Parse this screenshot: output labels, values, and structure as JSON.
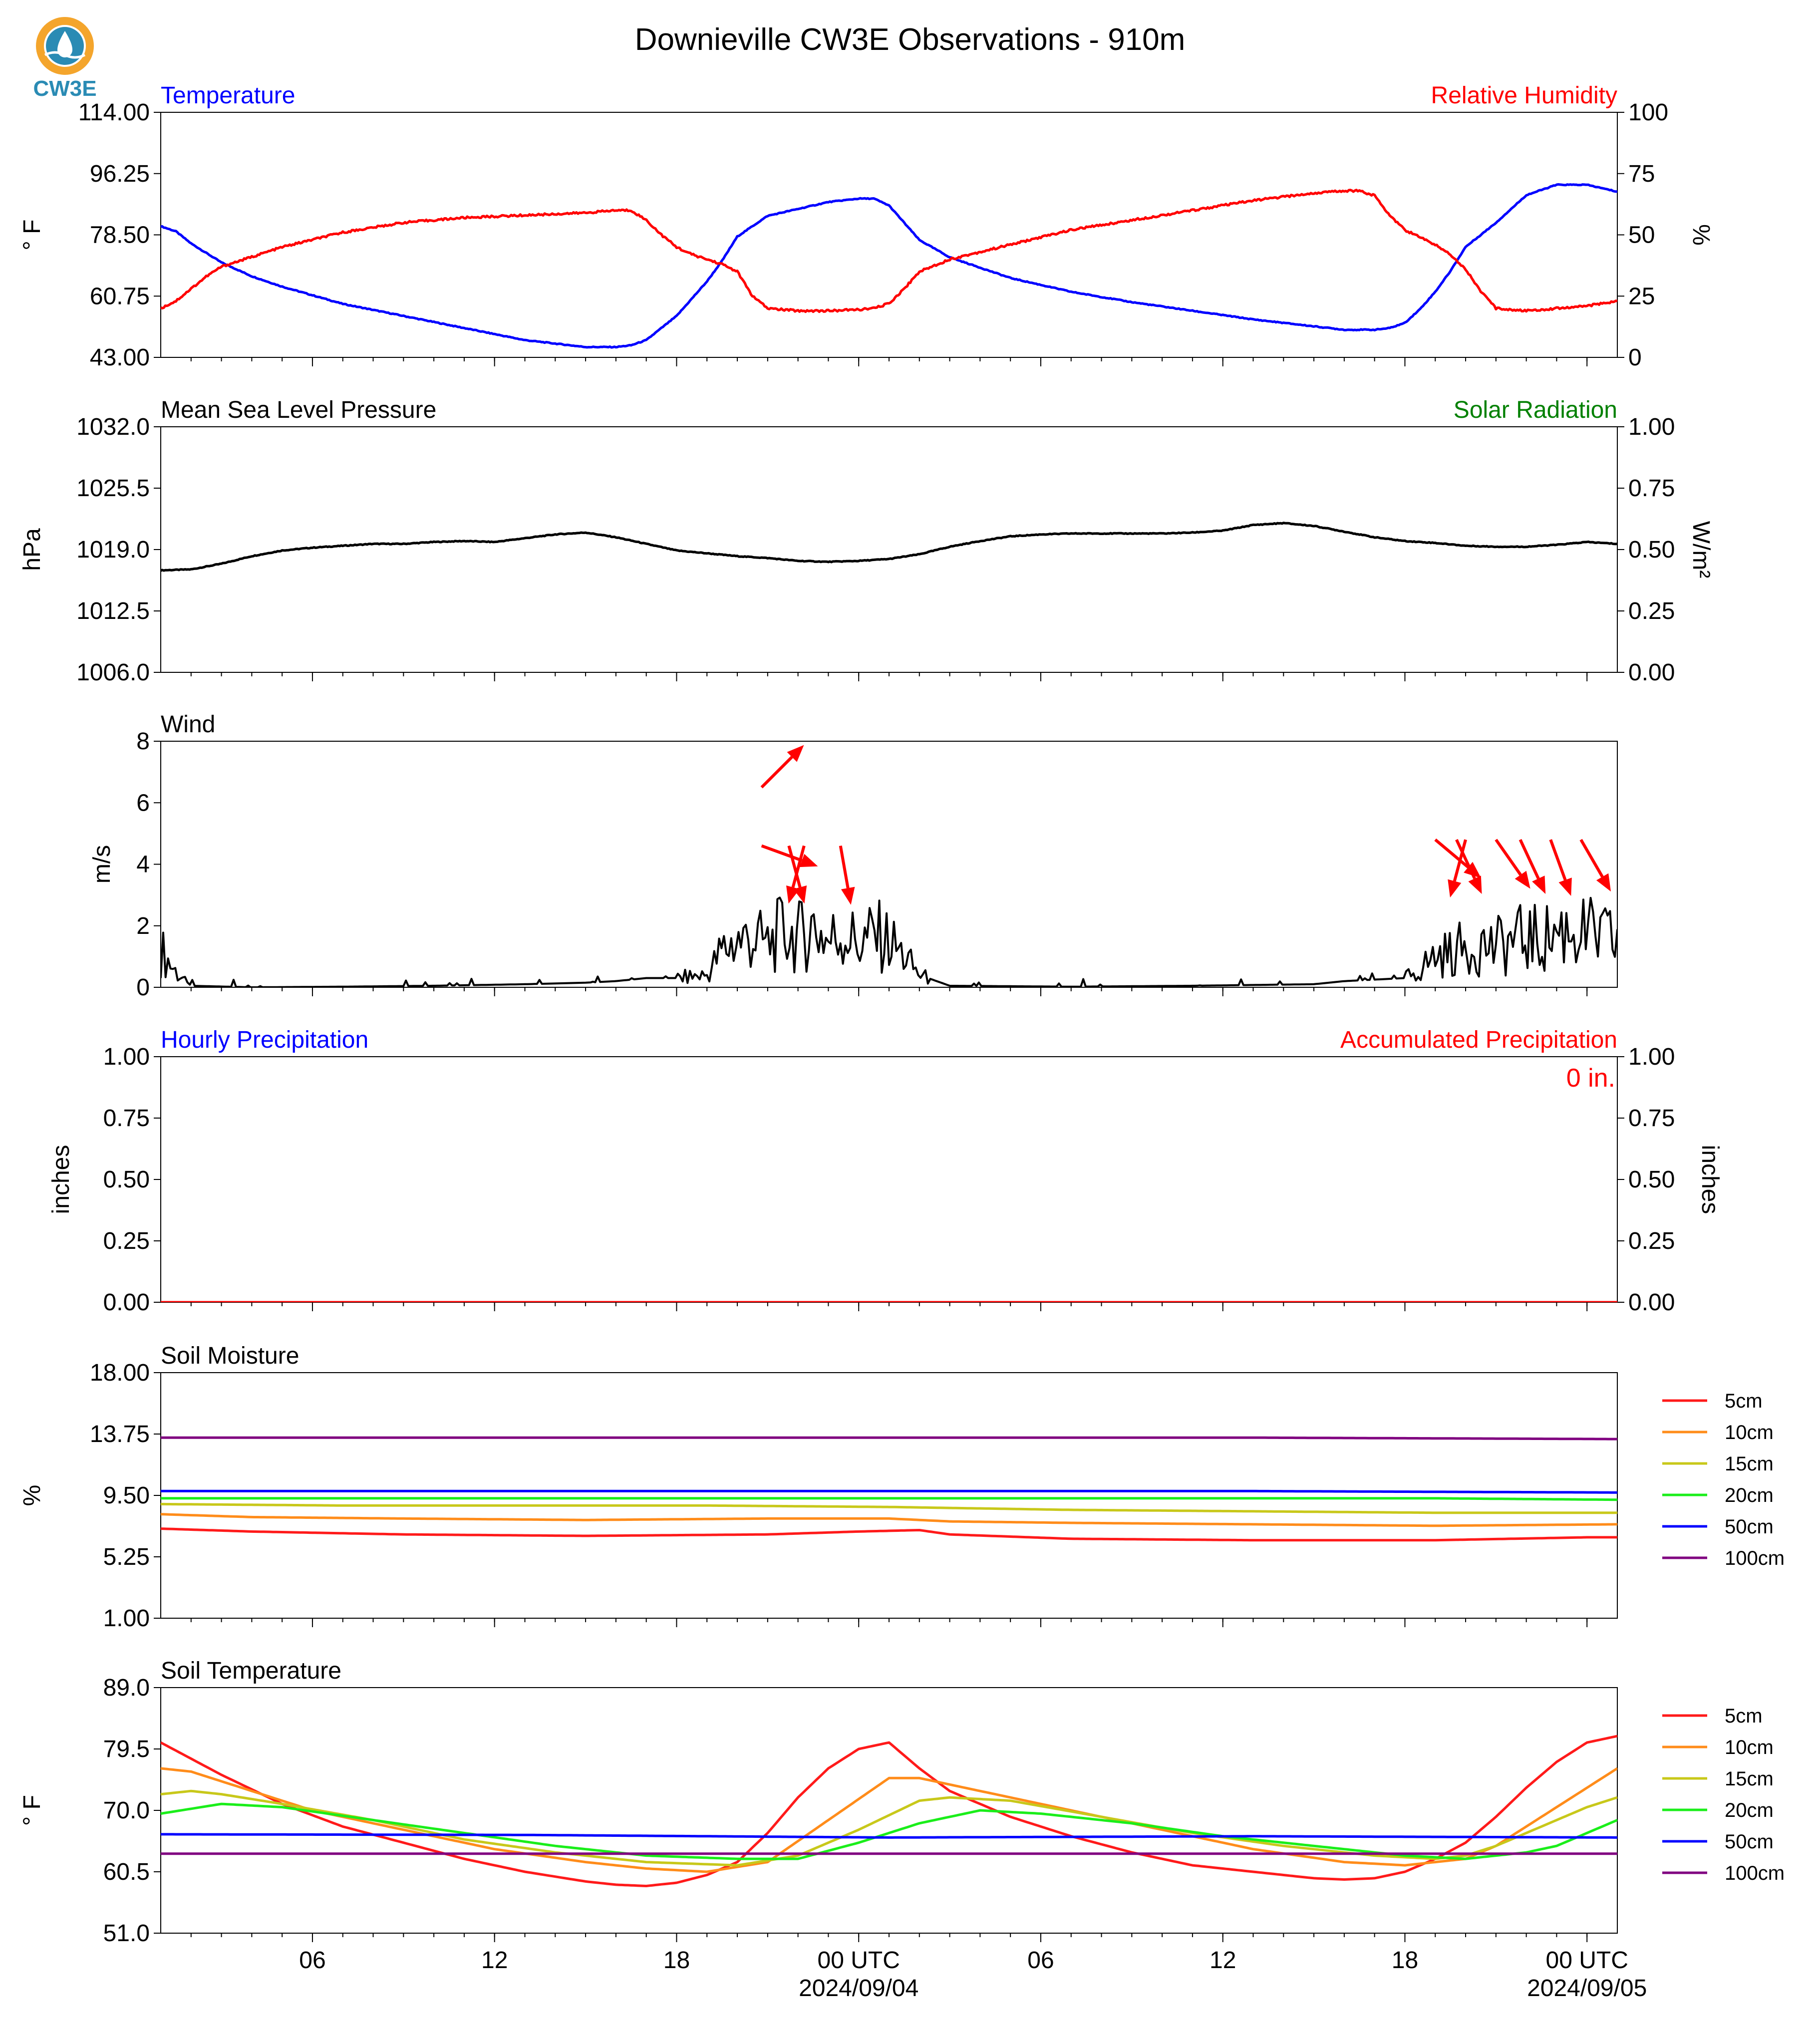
{
  "page": {
    "title": "Downieville CW3E Observations - 910m",
    "logo_text": "CW3E"
  },
  "colors": {
    "blue": "#0000ff",
    "red": "#ff0000",
    "green": "#008000",
    "black": "#000000",
    "logo_orange": "#f4a52c",
    "logo_teal": "#2a8bb4"
  },
  "x_axis": {
    "range_hours": [
      0,
      48
    ],
    "ticks": [
      {
        "h": 5,
        "label": "06",
        "date": ""
      },
      {
        "h": 11,
        "label": "12",
        "date": ""
      },
      {
        "h": 17,
        "label": "18",
        "date": ""
      },
      {
        "h": 23,
        "label": "00 UTC",
        "date": "2024/09/04"
      },
      {
        "h": 29,
        "label": "06",
        "date": ""
      },
      {
        "h": 35,
        "label": "12",
        "date": ""
      },
      {
        "h": 41,
        "label": "18",
        "date": ""
      },
      {
        "h": 47,
        "label": "00 UTC",
        "date": "2024/09/05"
      }
    ]
  },
  "chart_data": [
    {
      "id": "temperature",
      "type": "line",
      "title": "Temperature",
      "title_right": "Relative Humidity",
      "ylabel": "° F",
      "ylabel_right": "%",
      "ylim": [
        43.0,
        114.0
      ],
      "yticks": [
        "43.00",
        "60.75",
        "78.50",
        "96.25",
        "114.00"
      ],
      "ylim_right": [
        0,
        100
      ],
      "yticks_right": [
        "0",
        "25",
        "50",
        "75",
        "100"
      ],
      "series": [
        {
          "name": "Temperature",
          "axis": "left",
          "color": "#0000ff",
          "x": [
            0,
            0.5,
            1,
            2,
            3,
            4,
            5,
            6,
            8,
            10,
            12,
            13,
            14,
            15,
            15.5,
            16,
            17,
            17.5,
            18,
            18.5,
            19,
            20,
            21,
            22,
            23,
            23.5,
            24,
            24.5,
            25,
            26,
            28,
            30,
            32,
            34,
            36,
            38,
            39,
            40,
            40.5,
            41,
            41.5,
            42,
            42.5,
            43,
            44,
            45,
            46,
            47,
            48
          ],
          "y": [
            81,
            79.5,
            76,
            70.5,
            66.5,
            63.5,
            61,
            58.5,
            55,
            51.5,
            48,
            47,
            46,
            46,
            46.5,
            48,
            55,
            60,
            65,
            71,
            78,
            84,
            86,
            88,
            89,
            89,
            87,
            82,
            77,
            72,
            66,
            62,
            59,
            56.5,
            54,
            52,
            51,
            51,
            51.5,
            53,
            57,
            62,
            68,
            75,
            82,
            90,
            93,
            93,
            91
          ]
        },
        {
          "name": "Relative Humidity",
          "axis": "right",
          "color": "#ff0000",
          "x": [
            0,
            0.5,
            1,
            1.5,
            2,
            3,
            4,
            5,
            6,
            8,
            10,
            12,
            14,
            15,
            15.5,
            16,
            16.5,
            17,
            17.5,
            18,
            18.5,
            19,
            19.5,
            20,
            21,
            22,
            23,
            23.5,
            24,
            24.5,
            25,
            26,
            28,
            30,
            32,
            34,
            36,
            38,
            39,
            39.5,
            40,
            40.5,
            41,
            41.5,
            42,
            42.5,
            43,
            43.5,
            44,
            45,
            46,
            47,
            48
          ],
          "y": [
            20,
            23,
            28,
            33,
            37,
            41,
            45,
            48,
            51,
            55,
            57,
            58,
            59,
            60,
            60,
            56,
            50,
            45,
            42,
            40,
            38,
            35,
            25,
            20,
            19,
            19,
            19.5,
            20,
            22,
            28,
            35,
            40,
            46,
            52,
            56,
            60,
            64,
            67,
            68,
            68,
            66,
            58,
            52,
            49,
            46,
            42,
            36,
            27,
            20,
            19,
            20,
            21,
            23
          ]
        }
      ]
    },
    {
      "id": "pressure",
      "type": "line",
      "title": "Mean Sea Level Pressure",
      "title_right": "Solar Radiation",
      "ylabel": "hPa",
      "ylabel_right": "W/m²",
      "ylim": [
        1006.0,
        1032.0
      ],
      "yticks": [
        "1006.0",
        "1012.5",
        "1019.0",
        "1025.5",
        "1032.0"
      ],
      "ylim_right": [
        0,
        1
      ],
      "yticks_right": [
        "0.00",
        "0.25",
        "0.50",
        "0.75",
        "1.00"
      ],
      "series": [
        {
          "name": "Mean Sea Level Pressure",
          "axis": "left",
          "color": "#000000",
          "x": [
            0,
            1,
            2,
            3,
            4,
            5,
            6,
            7,
            8,
            9,
            10,
            11,
            12,
            13,
            14,
            15,
            16,
            17,
            18,
            19,
            20,
            21,
            22,
            23,
            24,
            25,
            26,
            27,
            28,
            29,
            30,
            31,
            32,
            33,
            34,
            35,
            36,
            37,
            38,
            39,
            40,
            41,
            42,
            43,
            44,
            45,
            46,
            47,
            48
          ],
          "y": [
            1016.8,
            1016.9,
            1017.5,
            1018.3,
            1018.9,
            1019.2,
            1019.4,
            1019.6,
            1019.6,
            1019.8,
            1019.9,
            1019.8,
            1020.2,
            1020.6,
            1020.8,
            1020.3,
            1019.6,
            1018.9,
            1018.6,
            1018.3,
            1018.1,
            1017.8,
            1017.7,
            1017.8,
            1018.0,
            1018.5,
            1019.3,
            1019.9,
            1020.4,
            1020.6,
            1020.7,
            1020.7,
            1020.7,
            1020.7,
            1020.8,
            1021.0,
            1021.6,
            1021.8,
            1021.5,
            1020.9,
            1020.3,
            1019.9,
            1019.7,
            1019.4,
            1019.3,
            1019.3,
            1019.5,
            1019.8,
            1019.6
          ]
        }
      ]
    },
    {
      "id": "wind",
      "type": "line",
      "title": "Wind",
      "ylabel": "m/s",
      "ylim": [
        0,
        8
      ],
      "yticks": [
        "0",
        "2",
        "4",
        "6",
        "8"
      ],
      "series": [
        {
          "name": "Wind speed",
          "axis": "left",
          "color": "#000000",
          "x": [
            0,
            0.5,
            1,
            3,
            6,
            9,
            12,
            14,
            15,
            16,
            17,
            18,
            18.5,
            19,
            19.5,
            20,
            20.5,
            21,
            21.5,
            22,
            22.5,
            23,
            23.5,
            24,
            24.5,
            25,
            26,
            30,
            34,
            38,
            39,
            40,
            41,
            41.5,
            42,
            42.5,
            43,
            43.5,
            44,
            44.5,
            45,
            45.5,
            46,
            46.5,
            47,
            47.5,
            48
          ],
          "y": [
            1.2,
            0.5,
            0.05,
            0,
            0.02,
            0.05,
            0.1,
            0.15,
            0.2,
            0.3,
            0.3,
            0.4,
            1.2,
            1.5,
            1.6,
            1.4,
            1.8,
            1.6,
            2.0,
            1.5,
            1.8,
            1.4,
            1.7,
            1.5,
            1.0,
            0.4,
            0.05,
            0.02,
            0.05,
            0.1,
            0.2,
            0.25,
            0.3,
            0.6,
            1.0,
            1.1,
            1.3,
            1.4,
            1.3,
            1.5,
            1.6,
            1.5,
            1.8,
            1.9,
            1.7,
            1.6,
            1.5
          ]
        },
        {
          "name": "Wind direction",
          "axis": "left",
          "color": "#ff0000",
          "type": "arrows",
          "x": [
            19.8,
            19.8,
            20.7,
            21.2,
            22.4,
            42.0,
            42.7,
            43.0,
            44.0,
            44.8,
            45.8,
            46.8
          ],
          "y": [
            6.5,
            4.6,
            4.6,
            4.6,
            4.6,
            4.8,
            4.8,
            4.8,
            4.8,
            4.8,
            4.8,
            4.8
          ],
          "dir_deg": [
            225,
            290,
            345,
            15,
            350,
            310,
            335,
            15,
            325,
            335,
            340,
            330
          ]
        }
      ]
    },
    {
      "id": "precipitation",
      "type": "line",
      "title": "Hourly Precipitation",
      "title_right": "Accumulated Precipitation",
      "annotation": "0 in.",
      "ylabel": "inches",
      "ylabel_right": "inches",
      "ylim": [
        0,
        1
      ],
      "yticks": [
        "0.00",
        "0.25",
        "0.50",
        "0.75",
        "1.00"
      ],
      "ylim_right": [
        0,
        1
      ],
      "yticks_right": [
        "0.00",
        "0.25",
        "0.50",
        "0.75",
        "1.00"
      ],
      "series": [
        {
          "name": "Hourly Precipitation",
          "axis": "left",
          "color": "#0000ff",
          "x": [
            0,
            48
          ],
          "y": [
            0,
            0
          ]
        },
        {
          "name": "Accumulated Precipitation",
          "axis": "right",
          "color": "#ff0000",
          "x": [
            0,
            48
          ],
          "y": [
            0,
            0
          ]
        }
      ]
    },
    {
      "id": "soil_moisture",
      "type": "line",
      "title": "Soil Moisture",
      "ylabel": "%",
      "ylim": [
        1.0,
        18.0
      ],
      "yticks": [
        "1.00",
        "5.25",
        "9.50",
        "13.75",
        "18.00"
      ],
      "legend": "right",
      "series": [
        {
          "name": "5cm",
          "color": "#ff1a1a",
          "x": [
            0,
            3,
            8,
            14,
            20,
            23,
            25,
            26,
            30,
            36,
            42,
            47,
            48
          ],
          "y": [
            7.2,
            7.0,
            6.8,
            6.7,
            6.8,
            7.0,
            7.1,
            6.8,
            6.5,
            6.4,
            6.4,
            6.6,
            6.6
          ]
        },
        {
          "name": "10cm",
          "color": "#ff8c1a",
          "x": [
            0,
            3,
            8,
            14,
            20,
            24,
            26,
            30,
            36,
            42,
            48
          ],
          "y": [
            8.2,
            8.0,
            7.9,
            7.8,
            7.9,
            7.9,
            7.7,
            7.6,
            7.5,
            7.4,
            7.5
          ]
        },
        {
          "name": "15cm",
          "color": "#c8c81a",
          "x": [
            0,
            6,
            12,
            18,
            24,
            30,
            36,
            42,
            48
          ],
          "y": [
            8.9,
            8.8,
            8.8,
            8.8,
            8.7,
            8.5,
            8.4,
            8.3,
            8.3
          ]
        },
        {
          "name": "20cm",
          "color": "#1aee1a",
          "x": [
            0,
            6,
            12,
            18,
            24,
            30,
            36,
            42,
            48
          ],
          "y": [
            9.3,
            9.3,
            9.3,
            9.3,
            9.3,
            9.3,
            9.3,
            9.3,
            9.2
          ]
        },
        {
          "name": "50cm",
          "color": "#0000ff",
          "x": [
            0,
            12,
            24,
            36,
            48
          ],
          "y": [
            9.8,
            9.8,
            9.8,
            9.8,
            9.7
          ]
        },
        {
          "name": "100cm",
          "color": "#800080",
          "x": [
            0,
            12,
            24,
            36,
            48
          ],
          "y": [
            13.5,
            13.5,
            13.5,
            13.5,
            13.4
          ]
        }
      ]
    },
    {
      "id": "soil_temperature",
      "type": "line",
      "title": "Soil Temperature",
      "ylabel": "° F",
      "ylim": [
        51.0,
        89.0
      ],
      "yticks": [
        "51.0",
        "60.5",
        "70.0",
        "79.5",
        "89.0"
      ],
      "legend": "right",
      "series": [
        {
          "name": "5cm",
          "color": "#ff1a1a",
          "x": [
            0,
            2,
            4,
            6,
            8,
            10,
            12,
            14,
            15,
            16,
            17,
            18,
            19,
            20,
            21,
            22,
            23,
            24,
            25,
            26,
            28,
            30,
            32,
            34,
            36,
            38,
            39,
            40,
            41,
            42,
            43,
            44,
            45,
            46,
            47,
            48
          ],
          "y": [
            80.5,
            75.5,
            71,
            67.5,
            65,
            62.5,
            60.5,
            59,
            58.5,
            58.3,
            58.8,
            60,
            62,
            66.5,
            72,
            76.5,
            79.5,
            80.5,
            76.5,
            73,
            69,
            66,
            63.5,
            61.5,
            60.5,
            59.5,
            59.3,
            59.5,
            60.5,
            62.5,
            65,
            69,
            73.5,
            77.5,
            80.5,
            81.5
          ]
        },
        {
          "name": "10cm",
          "color": "#ff8c1a",
          "x": [
            0,
            1,
            3,
            5,
            8,
            11,
            14,
            16,
            18,
            20,
            22,
            24,
            25,
            27,
            30,
            33,
            36,
            39,
            41,
            43,
            44,
            45,
            46,
            47,
            48
          ],
          "y": [
            76.5,
            76,
            73,
            70,
            67,
            64,
            62,
            61,
            60.5,
            62,
            68.5,
            75,
            75,
            73,
            70,
            67,
            64,
            62,
            61.5,
            62.5,
            64.5,
            67.5,
            70.5,
            73.5,
            76.5
          ]
        },
        {
          "name": "15cm",
          "color": "#c8c81a",
          "x": [
            0,
            1,
            2,
            4,
            7,
            10,
            13,
            16,
            19,
            21,
            23,
            25,
            26,
            28,
            31,
            34,
            37,
            40,
            42,
            43,
            44,
            45,
            46,
            47,
            48
          ],
          "y": [
            72.5,
            73,
            72.5,
            71,
            68.5,
            65.5,
            63.5,
            62,
            61.5,
            63,
            67,
            71.5,
            72,
            71.5,
            69,
            66.5,
            64.5,
            63,
            62.5,
            63,
            64.5,
            66.5,
            68.5,
            70.5,
            72
          ]
        },
        {
          "name": "20cm",
          "color": "#1aee1a",
          "x": [
            0,
            2,
            4,
            7,
            10,
            13,
            16,
            19,
            21,
            23,
            25,
            27,
            29,
            32,
            35,
            38,
            41,
            43,
            44,
            45,
            46,
            47,
            48
          ],
          "y": [
            69.5,
            71,
            70.5,
            68.5,
            66.5,
            64.5,
            63,
            62.5,
            62.5,
            65,
            68,
            70,
            69.5,
            68,
            66,
            64.5,
            63,
            62.5,
            63,
            63.5,
            64.5,
            66.5,
            68.5
          ]
        },
        {
          "name": "50cm",
          "color": "#0000ff",
          "x": [
            0,
            12,
            24,
            36,
            48
          ],
          "y": [
            66.3,
            66.2,
            65.8,
            66.0,
            65.8
          ]
        },
        {
          "name": "100cm",
          "color": "#800080",
          "x": [
            0,
            12,
            24,
            36,
            48
          ],
          "y": [
            63.3,
            63.3,
            63.3,
            63.3,
            63.3
          ]
        }
      ]
    }
  ]
}
